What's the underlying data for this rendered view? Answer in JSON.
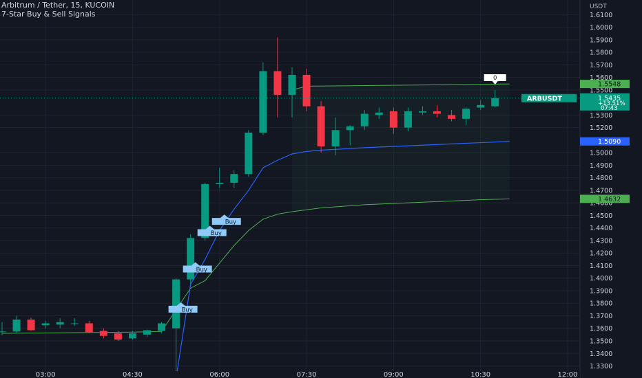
{
  "header": {
    "title": "Arbitrum / Tether, 15, KUCOIN",
    "indicator": "7-Star Buy & Sell Signals"
  },
  "axis": {
    "currency": "USDT",
    "price_ticks": [
      "1.6100",
      "1.6000",
      "1.5900",
      "1.5800",
      "1.5700",
      "1.5600",
      "1.5500",
      "1.5300",
      "1.5200",
      "1.5000",
      "1.4900",
      "1.4800",
      "1.4700",
      "1.4600",
      "1.4500",
      "1.4400",
      "1.4300",
      "1.4200",
      "1.4100",
      "1.4000",
      "1.3900",
      "1.3800",
      "1.3700",
      "1.3600",
      "1.3500",
      "1.3400",
      "1.3300"
    ],
    "time_ticks": [
      "03:00",
      "04:30",
      "06:00",
      "07:30",
      "09:00",
      "10:30",
      "12:00"
    ]
  },
  "price_labels": {
    "symbol": "ARBUSDT",
    "last_price": "1.5435",
    "change": "+13.51%",
    "countdown": "07:43",
    "upper_band": "1.5548",
    "mid_band": "1.5090",
    "lower_band": "1.4632"
  },
  "signals": {
    "buy_label": "Buy",
    "sell_label": "0"
  },
  "colors": {
    "bull": "#089981",
    "bear": "#f23645",
    "background": "#131722",
    "grid": "#1f2431",
    "mid_band": "#2962ff",
    "band": "#4caf50",
    "buy_badge": "#90caf9"
  },
  "chart_data": {
    "type": "candlestick",
    "interval": "15",
    "x_range": [
      "02:15",
      "12:15"
    ],
    "ylim": [
      1.3259,
      1.6217
    ],
    "candles": [
      {
        "t": "02:15",
        "o": 1.3575,
        "h": 1.365,
        "l": 1.3545,
        "c": 1.3575
      },
      {
        "t": "02:30",
        "o": 1.3575,
        "h": 1.37,
        "l": 1.356,
        "c": 1.367
      },
      {
        "t": "02:45",
        "o": 1.367,
        "h": 1.3685,
        "l": 1.358,
        "c": 1.3585
      },
      {
        "t": "03:00",
        "o": 1.3625,
        "h": 1.366,
        "l": 1.36,
        "c": 1.364
      },
      {
        "t": "03:15",
        "o": 1.363,
        "h": 1.368,
        "l": 1.36,
        "c": 1.365
      },
      {
        "t": "03:30",
        "o": 1.364,
        "h": 1.368,
        "l": 1.362,
        "c": 1.364
      },
      {
        "t": "03:45",
        "o": 1.364,
        "h": 1.366,
        "l": 1.356,
        "c": 1.357
      },
      {
        "t": "04:00",
        "o": 1.358,
        "h": 1.36,
        "l": 1.352,
        "c": 1.354
      },
      {
        "t": "04:15",
        "o": 1.356,
        "h": 1.358,
        "l": 1.35,
        "c": 1.351
      },
      {
        "t": "04:30",
        "o": 1.352,
        "h": 1.358,
        "l": 1.351,
        "c": 1.356
      },
      {
        "t": "04:45",
        "o": 1.355,
        "h": 1.359,
        "l": 1.353,
        "c": 1.3585
      },
      {
        "t": "05:00",
        "o": 1.358,
        "h": 1.365,
        "l": 1.356,
        "c": 1.364
      },
      {
        "t": "05:15",
        "o": 1.36,
        "h": 1.4,
        "l": 1.32,
        "c": 1.399
      },
      {
        "t": "05:30",
        "o": 1.399,
        "h": 1.435,
        "l": 1.395,
        "c": 1.432
      },
      {
        "t": "05:45",
        "o": 1.432,
        "h": 1.476,
        "l": 1.43,
        "c": 1.475
      },
      {
        "t": "06:00",
        "o": 1.475,
        "h": 1.488,
        "l": 1.472,
        "c": 1.476
      },
      {
        "t": "06:15",
        "o": 1.476,
        "h": 1.486,
        "l": 1.472,
        "c": 1.483
      },
      {
        "t": "06:30",
        "o": 1.483,
        "h": 1.518,
        "l": 1.481,
        "c": 1.516
      },
      {
        "t": "06:45",
        "o": 1.516,
        "h": 1.572,
        "l": 1.514,
        "c": 1.565
      },
      {
        "t": "07:00",
        "o": 1.565,
        "h": 1.592,
        "l": 1.528,
        "c": 1.546
      },
      {
        "t": "07:15",
        "o": 1.546,
        "h": 1.568,
        "l": 1.528,
        "c": 1.562
      },
      {
        "t": "07:30",
        "o": 1.562,
        "h": 1.567,
        "l": 1.533,
        "c": 1.537
      },
      {
        "t": "07:45",
        "o": 1.537,
        "h": 1.541,
        "l": 1.5,
        "c": 1.505
      },
      {
        "t": "08:00",
        "o": 1.505,
        "h": 1.528,
        "l": 1.498,
        "c": 1.518
      },
      {
        "t": "08:15",
        "o": 1.518,
        "h": 1.522,
        "l": 1.506,
        "c": 1.521
      },
      {
        "t": "08:30",
        "o": 1.521,
        "h": 1.534,
        "l": 1.518,
        "c": 1.531
      },
      {
        "t": "08:45",
        "o": 1.53,
        "h": 1.536,
        "l": 1.527,
        "c": 1.532
      },
      {
        "t": "09:00",
        "o": 1.533,
        "h": 1.536,
        "l": 1.515,
        "c": 1.52
      },
      {
        "t": "09:15",
        "o": 1.52,
        "h": 1.536,
        "l": 1.517,
        "c": 1.533
      },
      {
        "t": "09:30",
        "o": 1.532,
        "h": 1.537,
        "l": 1.53,
        "c": 1.533
      },
      {
        "t": "09:45",
        "o": 1.533,
        "h": 1.538,
        "l": 1.528,
        "c": 1.531
      },
      {
        "t": "10:00",
        "o": 1.53,
        "h": 1.534,
        "l": 1.525,
        "c": 1.527
      },
      {
        "t": "10:15",
        "o": 1.527,
        "h": 1.536,
        "l": 1.522,
        "c": 1.535
      },
      {
        "t": "10:30",
        "o": 1.536,
        "h": 1.542,
        "l": 1.534,
        "c": 1.538
      },
      {
        "t": "10:45",
        "o": 1.537,
        "h": 1.55,
        "l": 1.536,
        "c": 1.5435
      }
    ],
    "mid_line": [
      {
        "t": "05:15",
        "v": 1.32
      },
      {
        "t": "05:30",
        "v": 1.395
      },
      {
        "t": "05:45",
        "v": 1.415
      },
      {
        "t": "06:00",
        "v": 1.438
      },
      {
        "t": "06:15",
        "v": 1.455
      },
      {
        "t": "06:30",
        "v": 1.47
      },
      {
        "t": "06:45",
        "v": 1.488
      },
      {
        "t": "07:00",
        "v": 1.494
      },
      {
        "t": "07:15",
        "v": 1.499
      },
      {
        "t": "07:30",
        "v": 1.501
      },
      {
        "t": "07:45",
        "v": 1.502
      },
      {
        "t": "08:30",
        "v": 1.504
      },
      {
        "t": "09:30",
        "v": 1.506
      },
      {
        "t": "10:30",
        "v": 1.508
      },
      {
        "t": "11:00",
        "v": 1.509
      }
    ],
    "upper_band_line": [
      {
        "t": "07:15",
        "v": 1.55
      },
      {
        "t": "07:30",
        "v": 1.553
      },
      {
        "t": "08:30",
        "v": 1.5535
      },
      {
        "t": "09:30",
        "v": 1.554
      },
      {
        "t": "10:30",
        "v": 1.5545
      },
      {
        "t": "11:00",
        "v": 1.5548
      }
    ],
    "lower_band_line": [
      {
        "t": "02:15",
        "v": 1.356
      },
      {
        "t": "04:30",
        "v": 1.357
      },
      {
        "t": "05:00",
        "v": 1.3575
      },
      {
        "t": "05:30",
        "v": 1.392
      },
      {
        "t": "05:45",
        "v": 1.398
      },
      {
        "t": "06:00",
        "v": 1.412
      },
      {
        "t": "06:15",
        "v": 1.426
      },
      {
        "t": "06:30",
        "v": 1.438
      },
      {
        "t": "06:45",
        "v": 1.447
      },
      {
        "t": "07:00",
        "v": 1.451
      },
      {
        "t": "07:15",
        "v": 1.453
      },
      {
        "t": "07:45",
        "v": 1.456
      },
      {
        "t": "08:30",
        "v": 1.4585
      },
      {
        "t": "09:30",
        "v": 1.4605
      },
      {
        "t": "10:30",
        "v": 1.4625
      },
      {
        "t": "11:00",
        "v": 1.4632
      }
    ],
    "buy_signals": [
      {
        "t": "05:15",
        "price": 1.378
      },
      {
        "t": "05:30",
        "price": 1.41
      },
      {
        "t": "05:45",
        "price": 1.439
      },
      {
        "t": "06:00",
        "price": 1.448
      }
    ],
    "sell_signals": [
      {
        "t": "10:45",
        "price": 1.556
      }
    ],
    "band_ranges": [
      {
        "t": "05:30",
        "y0": 1.392,
        "y1": 1.412
      },
      {
        "t": "05:45",
        "y0": 1.41,
        "y1": 1.435
      }
    ]
  }
}
